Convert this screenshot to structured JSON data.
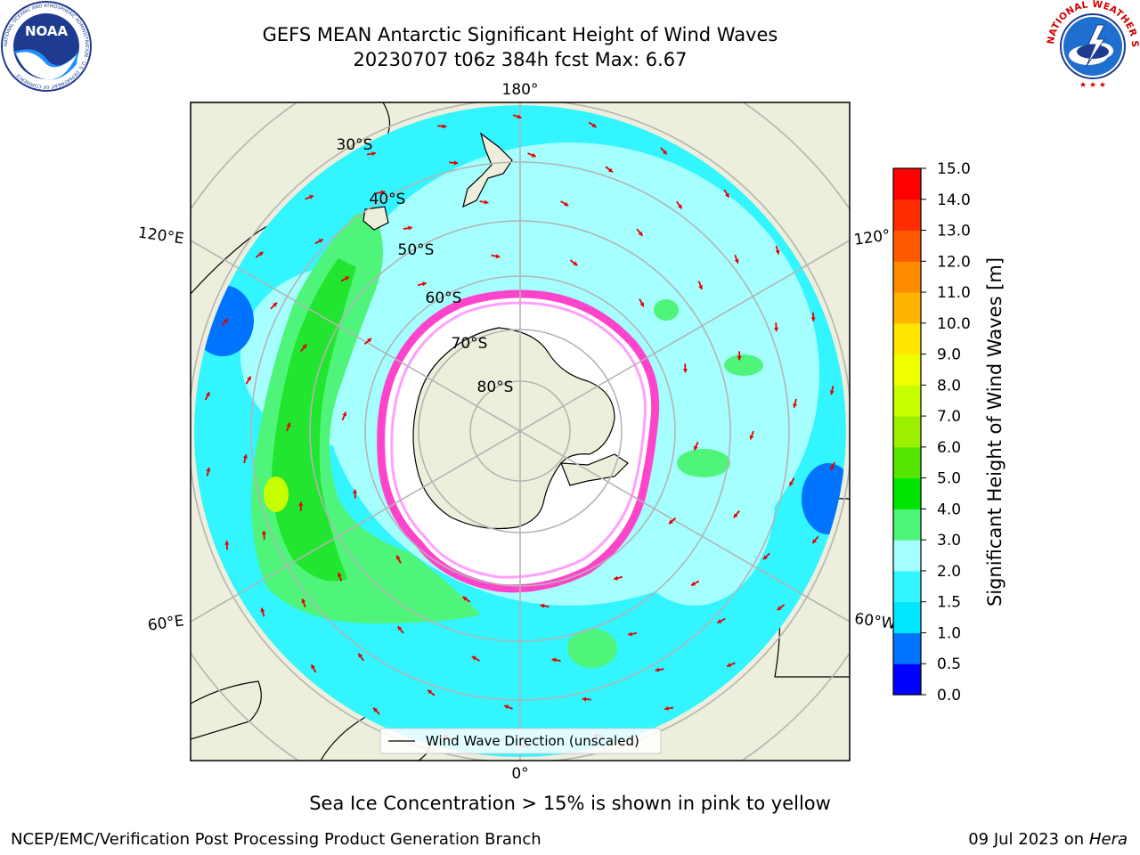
{
  "title": {
    "line1": "GEFS MEAN Antarctic Significant Height of Wind Waves",
    "line2": "20230707 t06z 384h fcst   Max: 6.67"
  },
  "logos": {
    "left": "NOAA",
    "left_ring_text": "NATIONAL OCEANIC AND ATMOSPHERIC ADMINISTRATION · U.S. DEPARTMENT OF COMMERCE",
    "right_ring_text": "NATIONAL WEATHER SERVICE"
  },
  "map": {
    "projection": "south-polar-stereographic",
    "longitude_labels": {
      "top": "180°",
      "bottom": "0°",
      "upper_left": "120°E",
      "upper_right": "120°",
      "lower_left": "60°E",
      "lower_right": "60°W"
    },
    "latitude_labels": [
      "30°S",
      "40°S",
      "50°S",
      "60°S",
      "70°S",
      "80°S"
    ],
    "legend_label": "Wind Wave Direction (unscaled)",
    "colors": {
      "land": "#eeeedc",
      "ocean_light": "#a5ffff",
      "ocean_cyan": "#33f5ff",
      "ocean_teal": "#00e8ff",
      "green_light": "#4ff57a",
      "green": "#22e52f",
      "yellow_green": "#c8ff00",
      "sea_ice": "#ffffff",
      "ice_edge": "#ff44cc",
      "arrow": "#e60000",
      "graticule": "#b4b4b4"
    }
  },
  "colorbar": {
    "label": "Significant Height of Wind Waves [m]",
    "ticks": [
      "0.0",
      "0.5",
      "1.0",
      "1.5",
      "2.0",
      "3.0",
      "4.0",
      "5.0",
      "6.0",
      "7.0",
      "8.0",
      "9.0",
      "10.0",
      "11.0",
      "12.0",
      "13.0",
      "14.0",
      "15.0"
    ],
    "colors": [
      "#0000ff",
      "#0074ff",
      "#00e8ff",
      "#33f5ff",
      "#a5ffff",
      "#4ff57a",
      "#00e600",
      "#52e600",
      "#9bf000",
      "#c8ff00",
      "#f0ff00",
      "#ffe600",
      "#ffb400",
      "#ff8c00",
      "#ff5a00",
      "#ff2d00",
      "#ff0000"
    ]
  },
  "footer": {
    "note": "Sea Ice Concentration > 15% is shown in pink to yellow",
    "left": "NCEP/EMC/Verification Post Processing Product Generation Branch",
    "right_prefix": "09 Jul 2023 on ",
    "right_host": "Hera"
  }
}
